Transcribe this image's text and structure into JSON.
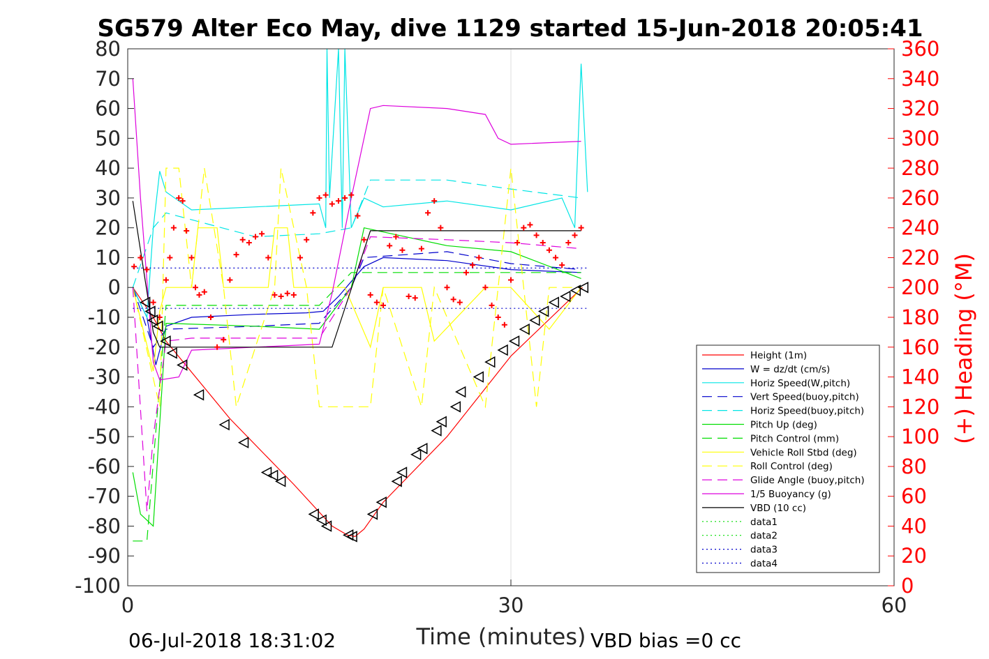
{
  "chart_data": {
    "type": "line",
    "title": "SG579 Alter Eco May, dive 1129 started 15-Jun-2018 20:05:41",
    "xlabel": "Time (minutes)",
    "ylabel_right": "(+) Heading (°M)",
    "xlim": [
      0,
      60
    ],
    "ylim": [
      -100,
      80
    ],
    "ylim_right": [
      0,
      360
    ],
    "x_ticks": [
      0,
      30,
      60
    ],
    "y_ticks": [
      80,
      70,
      60,
      50,
      40,
      30,
      20,
      10,
      0,
      -10,
      -20,
      -30,
      -40,
      -50,
      -60,
      -70,
      -80,
      -90,
      -100
    ],
    "y_ticks_right": [
      360,
      340,
      320,
      300,
      280,
      260,
      240,
      220,
      200,
      180,
      160,
      140,
      120,
      100,
      80,
      60,
      40,
      20,
      0
    ],
    "grid": "x-only",
    "legend_position": "lower-right",
    "footer_left": "06-Jul-2018 18:31:02",
    "footer_right": "VBD bias =0 cc",
    "colors": {
      "red": "#ff0000",
      "blue": "#0000cc",
      "cyan": "#00e5e5",
      "green": "#00dd00",
      "yellow": "#ffff00",
      "magenta": "#dd00dd",
      "black": "#000000"
    },
    "series": [
      {
        "name": "Height (1m)",
        "color": "#ff0000",
        "dash": "solid",
        "x": [
          0.4,
          2.0,
          3.0,
          8.0,
          13.0,
          16.0,
          17.2,
          17.8,
          18.5,
          20.0,
          25.0,
          30.0,
          35.6
        ],
        "y": [
          0,
          -10,
          -18,
          -44,
          -66,
          -80,
          -83,
          -83.5,
          -81,
          -72,
          -50,
          -23,
          0
        ]
      },
      {
        "name": "W = dz/dt (cm/s)",
        "color": "#0000cc",
        "dash": "solid",
        "x": [
          0.4,
          1.5,
          2.2,
          3.0,
          5.0,
          10.0,
          14.0,
          15.3,
          16.5,
          17.5,
          18.5,
          20.0,
          25.0,
          30.0,
          35.5
        ],
        "y": [
          0,
          -10,
          -26,
          -13,
          -10,
          -9,
          -8.5,
          -8,
          -3,
          2,
          7,
          10,
          9,
          6,
          5
        ]
      },
      {
        "name": "Horiz Speed(W,pitch)",
        "color": "#00e5e5",
        "dash": "solid",
        "x": [
          0.4,
          1.5,
          2.0,
          2.5,
          3.0,
          5.0,
          10.0,
          15.0,
          15.5,
          15.6,
          15.8,
          16.5,
          16.8,
          17.0,
          17.5,
          18.5,
          20.0,
          25.0,
          30.0,
          34.0,
          35.0,
          35.5,
          36.0
        ],
        "y": [
          0,
          -10,
          20,
          39,
          32,
          26,
          27,
          28,
          20,
          80,
          30,
          80,
          20,
          80,
          20,
          30,
          27,
          29,
          26,
          30,
          20,
          75,
          32
        ]
      },
      {
        "name": "Vert Speed(buoy,pitch)",
        "color": "#0000cc",
        "dash": "dash",
        "x": [
          0.4,
          2.0,
          3.0,
          10.0,
          15.0,
          17.5,
          18.5,
          25.0,
          30.0,
          35.5
        ],
        "y": [
          0,
          -20,
          -14,
          -13,
          -12,
          0,
          10,
          12,
          8,
          6
        ]
      },
      {
        "name": "Horiz Speed(buoy,pitch)",
        "color": "#00e5e5",
        "dash": "dash",
        "x": [
          0.4,
          2.0,
          3.0,
          10.0,
          15.0,
          17.5,
          19.0,
          25.0,
          30.0,
          35.5
        ],
        "y": [
          0,
          20,
          25,
          17,
          18,
          20,
          36,
          36,
          33,
          30
        ]
      },
      {
        "name": "Pitch Up (deg)",
        "color": "#00dd00",
        "dash": "solid",
        "x": [
          0.4,
          1.0,
          2.0,
          3.0,
          10.0,
          15.0,
          17.5,
          18.5,
          25.0,
          30.0,
          35.5
        ],
        "y": [
          -62,
          -76,
          -80,
          -12,
          -13,
          -14,
          0,
          20,
          14,
          12,
          3
        ]
      },
      {
        "name": "Pitch Control (mm)",
        "color": "#00dd00",
        "dash": "dash",
        "x": [
          0.4,
          1.5,
          3.0,
          10.0,
          15.0,
          17.5,
          19.0,
          25.0,
          30.0,
          35.5
        ],
        "y": [
          -85,
          -85,
          -6,
          -6,
          -6,
          5,
          5,
          5,
          5,
          5
        ]
      },
      {
        "name": "Vehicle Roll Stbd (deg)",
        "color": "#ffff00",
        "dash": "solid",
        "x": [
          0.4,
          2.0,
          2.5,
          3.0,
          5.0,
          5.5,
          7.0,
          7.5,
          11.0,
          11.5,
          12.5,
          13.0,
          15.0,
          17.0,
          19.0,
          20.0,
          23.0,
          24.0,
          28.0,
          30.0,
          33.0,
          35.5
        ],
        "y": [
          0,
          -28,
          -8,
          0,
          0,
          20,
          20,
          0,
          0,
          20,
          20,
          0,
          0,
          0,
          -20,
          0,
          0,
          -18,
          0,
          0,
          -14,
          0
        ]
      },
      {
        "name": "Roll Control (deg)",
        "color": "#ffff00",
        "dash": "dash",
        "x": [
          0.4,
          2.5,
          3.0,
          4.0,
          5.0,
          6.0,
          7.5,
          8.5,
          11.5,
          12.0,
          14.0,
          15.0,
          19.0,
          20.0,
          23.0,
          24.0,
          28.0,
          30.0,
          32.0,
          33.0,
          35.5
        ],
        "y": [
          0,
          -40,
          40,
          40,
          0,
          40,
          0,
          -40,
          0,
          40,
          0,
          -40,
          -40,
          0,
          -40,
          0,
          -40,
          40,
          -40,
          0,
          0
        ]
      },
      {
        "name": "Glide Angle (buoy,pitch)",
        "color": "#dd00dd",
        "dash": "dash",
        "x": [
          0.4,
          1.5,
          2.0,
          3.0,
          5.0,
          10.0,
          15.0,
          17.5,
          19.0,
          25.0,
          30.0,
          35.5
        ],
        "y": [
          0,
          -75,
          -50,
          -18,
          -17,
          -17,
          -17,
          0,
          17,
          16,
          15,
          13
        ]
      },
      {
        "name": "1/5 Buoyancy (g)",
        "color": "#dd00dd",
        "dash": "solid",
        "x": [
          0.4,
          1.0,
          2.0,
          2.5,
          4.0,
          5.0,
          10.0,
          15.0,
          16.0,
          17.5,
          19.0,
          20.0,
          25.0,
          28.0,
          29.0,
          30.0,
          35.5
        ],
        "y": [
          70,
          30,
          -25,
          -31,
          -30,
          -21,
          -20,
          -19,
          -2,
          30,
          60,
          61,
          60,
          58,
          50,
          48,
          49
        ]
      },
      {
        "name": "VBD (10 cc)",
        "color": "#000000",
        "dash": "solid",
        "x": [
          0.4,
          2.0,
          2.5,
          16.0,
          19.0,
          30.0,
          35.5
        ],
        "y": [
          29,
          -15,
          -20,
          -20,
          19,
          19,
          19
        ]
      },
      {
        "name": "data1",
        "color": "#00dd00",
        "dash": "dot",
        "x": [],
        "y": []
      },
      {
        "name": "data2",
        "color": "#00dd00",
        "dash": "dot",
        "x": [],
        "y": []
      },
      {
        "name": "data3",
        "color": "#0000cc",
        "dash": "dot",
        "x": [
          0.4,
          36.0
        ],
        "y": [
          6.5,
          6.5
        ]
      },
      {
        "name": "data4",
        "color": "#0000cc",
        "dash": "dot",
        "x": [
          0.4,
          36.0
        ],
        "y": [
          -7,
          -7
        ]
      }
    ],
    "heading_points_deg": {
      "x": [
        0.5,
        1.0,
        1.5,
        2.0,
        2.5,
        3.0,
        3.3,
        3.6,
        4.0,
        4.3,
        4.6,
        5.0,
        5.3,
        5.6,
        6.0,
        6.5,
        7.0,
        7.5,
        8.0,
        8.5,
        9.0,
        9.5,
        10.0,
        10.5,
        11.0,
        11.5,
        12.0,
        12.5,
        13.0,
        13.5,
        14.0,
        14.5,
        15.0,
        15.5,
        16.0,
        16.5,
        17.0,
        17.5,
        18.0,
        18.5,
        19.0,
        19.5,
        20.0,
        20.5,
        21.0,
        21.5,
        22.0,
        22.5,
        23.0,
        23.5,
        24.0,
        24.5,
        25.0,
        25.5,
        26.0,
        26.5,
        27.0,
        27.5,
        28.0,
        28.5,
        29.0,
        29.5,
        30.0,
        30.5,
        31.0,
        31.5,
        32.0,
        32.5,
        33.0,
        33.5,
        34.0,
        34.5,
        35.0,
        35.5
      ],
      "y": [
        214,
        220,
        212,
        190,
        180,
        205,
        220,
        240,
        260,
        258,
        238,
        220,
        200,
        195,
        197,
        180,
        160,
        165,
        205,
        222,
        232,
        230,
        234,
        236,
        220,
        195,
        194,
        196,
        195,
        220,
        232,
        250,
        260,
        262,
        256,
        258,
        260,
        262,
        248,
        232,
        195,
        190,
        188,
        228,
        234,
        225,
        194,
        193,
        226,
        250,
        258,
        240,
        200,
        192,
        190,
        210,
        215,
        220,
        200,
        188,
        180,
        175,
        205,
        230,
        240,
        242,
        235,
        230,
        225,
        220,
        215,
        230,
        235,
        240
      ]
    },
    "sample_triangles": {
      "x": [
        1.4,
        1.8,
        2.0,
        2.4,
        3.0,
        3.5,
        4.3,
        5.6,
        7.6,
        9.1,
        10.9,
        11.4,
        12.0,
        14.6,
        15.2,
        15.6,
        17.3,
        17.6,
        19.2,
        19.9,
        21.1,
        21.5,
        22.6,
        23.1,
        24.2,
        24.6,
        25.7,
        26.1,
        27.5,
        28.4,
        29.4,
        30.3,
        31.1,
        31.9,
        32.6,
        33.4,
        34.3,
        35.1,
        35.7
      ],
      "y": [
        -5,
        -8,
        -11,
        -13,
        -18,
        -22,
        -26,
        -36,
        -46,
        -52,
        -62,
        -63,
        -65,
        -76,
        -78,
        -80,
        -83,
        -83.5,
        -76,
        -72,
        -65,
        -62,
        -56,
        -54,
        -48,
        -45,
        -40,
        -35,
        -30,
        -25,
        -21,
        -18,
        -14,
        -11,
        -8,
        -5,
        -3,
        -1,
        0
      ]
    },
    "legend_entries": [
      "Height (1m)",
      "W = dz/dt (cm/s)",
      "Horiz Speed(W,pitch)",
      "Vert Speed(buoy,pitch)",
      "Horiz Speed(buoy,pitch)",
      "Pitch Up (deg)",
      "Pitch Control (mm)",
      "Vehicle Roll Stbd (deg)",
      "Roll Control (deg)",
      "Glide Angle (buoy,pitch)",
      "1/5 Buoyancy (g)",
      "VBD (10 cc)",
      "data1",
      "data2",
      "data3",
      "data4"
    ]
  }
}
